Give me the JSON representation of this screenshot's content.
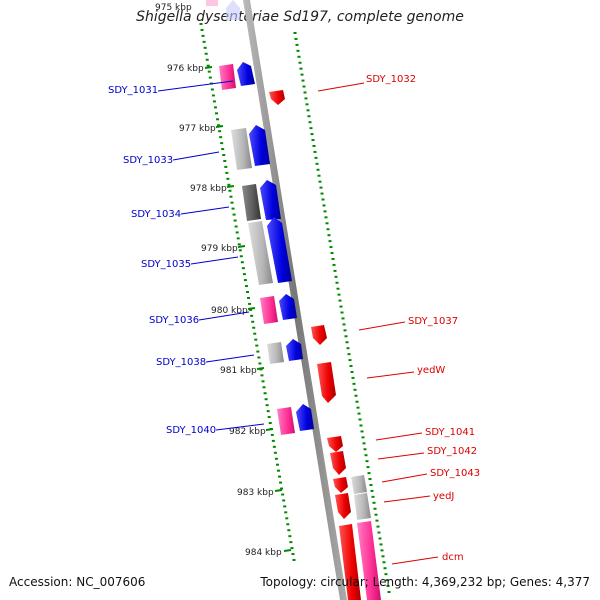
{
  "title": "Shigella dysenteriae Sd197, complete genome",
  "accession": "Accession: NC_007606",
  "summary": "Topology: circular; Length: 4,369,232 bp; Genes: 4,377",
  "ticks": [
    "975 kbp",
    "976 kbp",
    "977 kbp",
    "978 kbp",
    "979 kbp",
    "980 kbp",
    "981 kbp",
    "982 kbp",
    "983 kbp",
    "984 kbp"
  ],
  "genes_left": [
    "SDY_1031",
    "SDY_1033",
    "SDY_1034",
    "SDY_1035",
    "SDY_1036",
    "SDY_1038",
    "SDY_1040"
  ],
  "genes_right": [
    "SDY_1032",
    "SDY_1037",
    "yedW",
    "SDY_1041",
    "SDY_1042",
    "SDY_1043",
    "yedJ",
    "dcm"
  ],
  "colors": {
    "forward_label": "#0000cc",
    "reverse_label": "#dd0000",
    "tick": "#008800",
    "forward_cds": "#1a1aee",
    "reverse_cds": "#ee1111",
    "pink": "#ff3fa0",
    "grey": "#b8b8b8",
    "dark_grey": "#666666"
  }
}
